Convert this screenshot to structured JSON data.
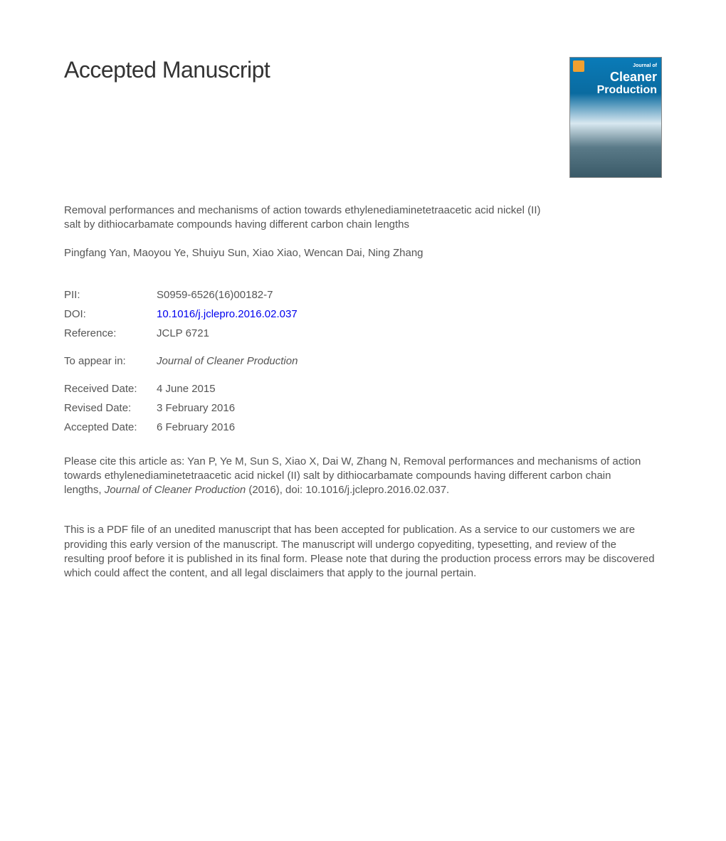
{
  "heading": "Accepted Manuscript",
  "cover": {
    "small": "Journal of",
    "line1": "Cleaner",
    "line2": "Production",
    "bg_top": "#0a7bb8",
    "bg_bottom": "#3a5a68"
  },
  "article_title": "Removal performances and mechanisms of action towards ethylenediaminetetraacetic acid nickel (II) salt by dithiocarbamate compounds having different carbon chain lengths",
  "authors": "Pingfang Yan, Maoyou Ye, Shuiyu Sun, Xiao Xiao, Wencan Dai, Ning Zhang",
  "meta": {
    "pii_label": "PII:",
    "pii_value": "S0959-6526(16)00182-7",
    "doi_label": "DOI:",
    "doi_value": "10.1016/j.jclepro.2016.02.037",
    "ref_label": "Reference:",
    "ref_value": "JCLP 6721",
    "appear_label": "To appear in:",
    "appear_value": "Journal of Cleaner Production",
    "received_label": "Received Date:",
    "received_value": "4 June 2015",
    "revised_label": "Revised Date:",
    "revised_value": "3 February 2016",
    "accepted_label": "Accepted Date:",
    "accepted_value": "6 February 2016"
  },
  "citation": {
    "prefix": "Please cite this article as: Yan P, Ye M, Sun S, Xiao X, Dai W, Zhang N, Removal performances and mechanisms of action towards ethylenediaminetetraacetic acid nickel (II) salt by dithiocarbamate compounds having different carbon chain lengths, ",
    "journal": "Journal of Cleaner Production",
    "suffix": " (2016), doi: 10.1016/j.jclepro.2016.02.037."
  },
  "notice": "This is a PDF file of an unedited manuscript that has been accepted for publication. As a service to our customers we are providing this early version of the manuscript. The manuscript will undergo copyediting, typesetting, and review of the resulting proof before it is published in its final form. Please note that during the production process errors may be discovered which could affect the content, and all legal disclaimers that apply to the journal pertain.",
  "colors": {
    "text": "#555555",
    "heading": "#333333",
    "link": "#0000ee",
    "background": "#ffffff"
  },
  "typography": {
    "heading_fontsize": 32,
    "body_fontsize": 15,
    "font_family": "Arial"
  }
}
